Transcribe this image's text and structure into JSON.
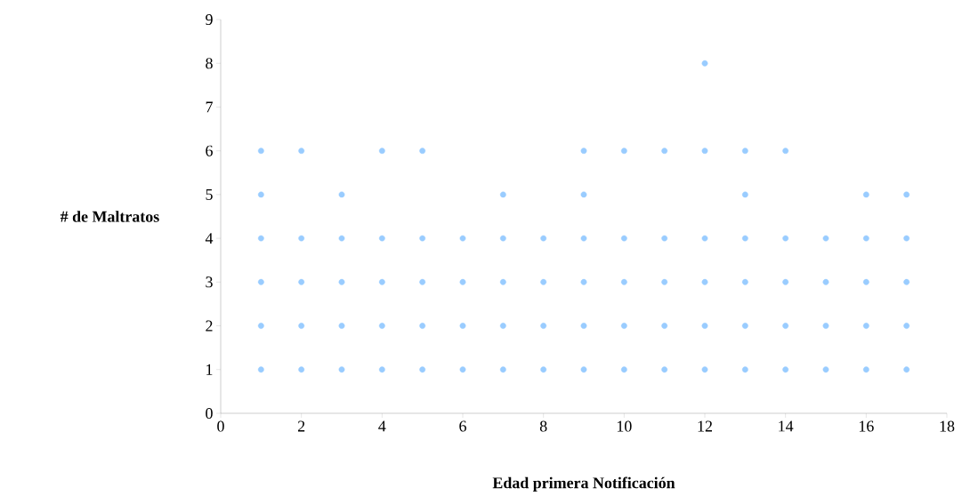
{
  "chart_data": {
    "type": "scatter",
    "xlabel": "Edad primera Notificación",
    "ylabel": "# de Maltratos",
    "x": [
      1,
      1,
      1,
      1,
      1,
      1,
      2,
      2,
      2,
      2,
      2,
      3,
      3,
      3,
      3,
      3,
      4,
      4,
      4,
      4,
      4,
      5,
      5,
      5,
      5,
      5,
      6,
      6,
      6,
      6,
      7,
      7,
      7,
      7,
      7,
      8,
      8,
      8,
      8,
      9,
      9,
      9,
      9,
      9,
      9,
      10,
      10,
      10,
      10,
      10,
      11,
      11,
      11,
      11,
      11,
      12,
      12,
      12,
      12,
      12,
      12,
      13,
      13,
      13,
      13,
      13,
      13,
      14,
      14,
      14,
      14,
      14,
      15,
      15,
      15,
      15,
      16,
      16,
      16,
      16,
      16,
      17,
      17,
      17,
      17,
      17
    ],
    "values": [
      1,
      2,
      3,
      4,
      5,
      6,
      1,
      2,
      3,
      4,
      6,
      1,
      2,
      3,
      4,
      5,
      1,
      2,
      3,
      4,
      6,
      1,
      2,
      3,
      4,
      6,
      1,
      2,
      3,
      4,
      1,
      2,
      3,
      4,
      5,
      1,
      2,
      3,
      4,
      1,
      2,
      3,
      4,
      5,
      6,
      1,
      2,
      3,
      4,
      6,
      1,
      2,
      3,
      4,
      6,
      1,
      2,
      3,
      4,
      6,
      8,
      1,
      2,
      3,
      4,
      5,
      6,
      1,
      2,
      3,
      4,
      6,
      1,
      2,
      3,
      4,
      1,
      2,
      3,
      4,
      5,
      1,
      2,
      3,
      4,
      5
    ],
    "color": "#99ccff",
    "marker": "circle",
    "grid": false,
    "xlim": [
      0,
      18
    ],
    "xticks": [
      0,
      2,
      4,
      6,
      8,
      10,
      12,
      14,
      16,
      18
    ],
    "ylim": [
      0,
      9
    ],
    "yticks": [
      0,
      1,
      2,
      3,
      4,
      5,
      6,
      7,
      8,
      9
    ]
  }
}
